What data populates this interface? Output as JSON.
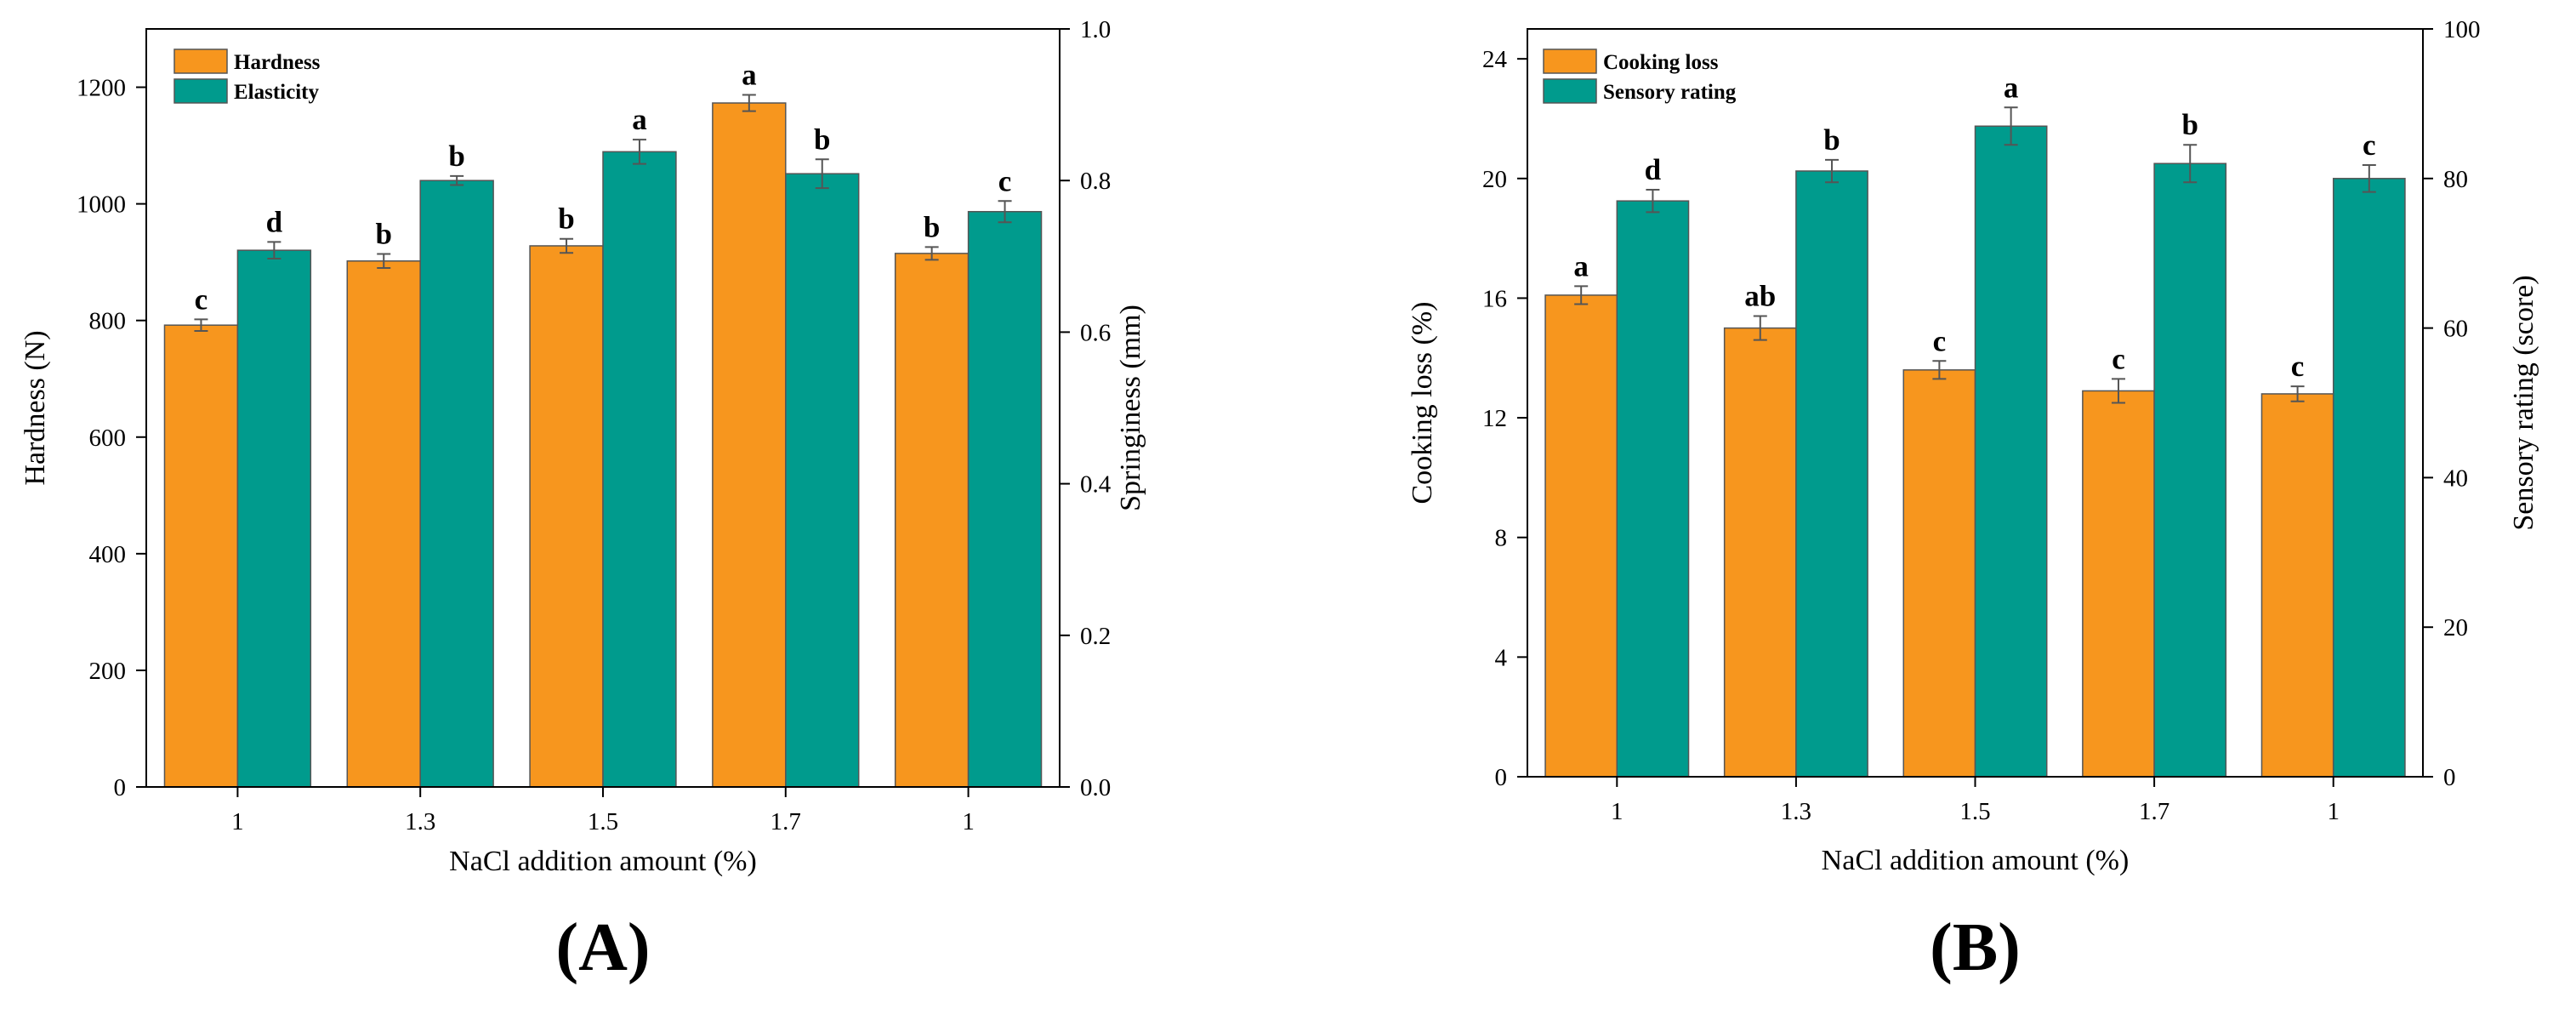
{
  "colors": {
    "primary": "#F7961E",
    "secondary": "#009B8D",
    "errorbar": "#555555",
    "axis": "#000000"
  },
  "chart_data": [
    {
      "type": "bar",
      "panel_label": "(A)",
      "categories": [
        "1",
        "1.3",
        "1.5",
        "1.7",
        "1"
      ],
      "xlabel": "NaCl addition amount (%)",
      "ylabel": "Hardness (N)",
      "y2label": "Springiness (mm)",
      "ylim": [
        0,
        1300
      ],
      "y2lim": [
        0,
        1.0
      ],
      "yticks": [
        0,
        200,
        400,
        600,
        800,
        1000,
        1200
      ],
      "y2ticks": [
        0.0,
        0.2,
        0.4,
        0.6,
        0.8,
        1.0
      ],
      "ytick_labels": [
        "0",
        "200",
        "400",
        "600",
        "800",
        "1000",
        "1200"
      ],
      "y2tick_labels": [
        "0.0",
        "0.2",
        "0.4",
        "0.6",
        "0.8",
        "1.0"
      ],
      "legend_position": "top-left",
      "series": [
        {
          "name": "Hardness",
          "axis": "left",
          "color": "#F7961E",
          "values": [
            792,
            902,
            928,
            1173,
            915
          ],
          "errors": [
            10,
            12,
            12,
            14,
            11
          ],
          "labels": [
            "c",
            "b",
            "b",
            "a",
            "b"
          ]
        },
        {
          "name": "Elasticity",
          "axis": "right",
          "color": "#009B8D",
          "values": [
            0.708,
            0.8,
            0.838,
            0.809,
            0.759
          ],
          "errors": [
            0.011,
            0.006,
            0.016,
            0.019,
            0.014
          ],
          "labels": [
            "d",
            "b",
            "a",
            "b",
            "c"
          ]
        }
      ]
    },
    {
      "type": "bar",
      "panel_label": "(B)",
      "categories": [
        "1",
        "1.3",
        "1.5",
        "1.7",
        "1"
      ],
      "xlabel": "NaCl addition amount (%)",
      "ylabel": "Cooking loss (%)",
      "y2label": "Sensory rating (score)",
      "ylim": [
        0,
        25
      ],
      "y2lim": [
        0,
        100
      ],
      "yticks": [
        0,
        4,
        8,
        12,
        16,
        20,
        24
      ],
      "y2ticks": [
        0,
        20,
        40,
        60,
        80,
        100
      ],
      "ytick_labels": [
        "0",
        "4",
        "8",
        "12",
        "16",
        "20",
        "24"
      ],
      "y2tick_labels": [
        "0",
        "20",
        "40",
        "60",
        "80",
        "100"
      ],
      "legend_position": "top-left",
      "series": [
        {
          "name": "Cooking loss",
          "axis": "left",
          "color": "#F7961E",
          "values": [
            16.1,
            15.0,
            13.6,
            12.9,
            12.8
          ],
          "errors": [
            0.3,
            0.4,
            0.3,
            0.4,
            0.25
          ],
          "labels": [
            "a",
            "ab",
            "c",
            "c",
            "c"
          ]
        },
        {
          "name": "Sensory rating",
          "axis": "right",
          "color": "#009B8D",
          "values": [
            77,
            81,
            87,
            82,
            80
          ],
          "errors": [
            1.5,
            1.5,
            2.5,
            2.5,
            1.8
          ],
          "labels": [
            "d",
            "b",
            "a",
            "b",
            "c"
          ]
        }
      ]
    }
  ]
}
